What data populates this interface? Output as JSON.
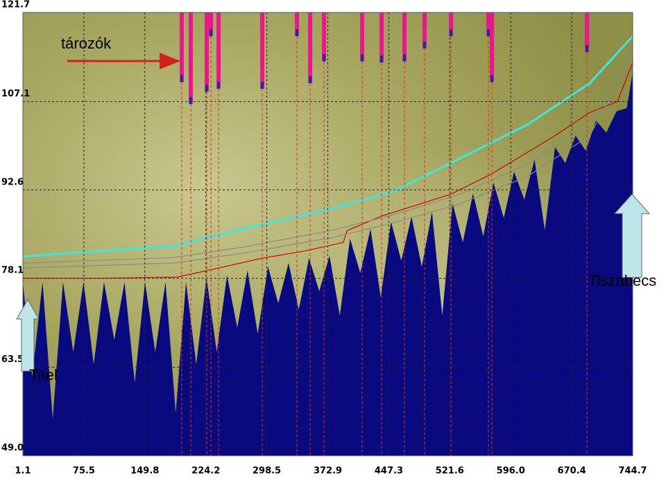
{
  "chart_data": {
    "type": "line",
    "xlim": [
      1.1,
      744.7
    ],
    "xticks": [
      1.1,
      75.5,
      149.8,
      224.2,
      298.5,
      372.9,
      447.3,
      521.6,
      {
        "value": 596,
        "label": "596.0"
      },
      670.4,
      744.7
    ],
    "ylim": [
      49,
      121.7
    ],
    "yticks": [
      {
        "value": 49,
        "label": "49.0"
      },
      63.5,
      78.1,
      92.6,
      107.1,
      121.7
    ],
    "grid": true,
    "series": [
      {
        "type": "area",
        "color": "#0a0a80",
        "x": [
          1.1,
          12.5,
          25,
          37.5,
          50,
          62.5,
          75,
          87.5,
          100,
          112.5,
          125,
          137.5,
          150,
          162.5,
          175,
          187.5,
          200,
          212.5,
          225,
          237.5,
          250,
          262.5,
          275,
          287.5,
          300,
          312.5,
          325,
          337.5,
          350,
          362.5,
          375,
          387.5,
          400,
          412.5,
          425,
          437.5,
          450,
          462.5,
          475,
          487.5,
          500,
          512.5,
          525,
          537.5,
          550,
          562.5,
          575,
          587.5,
          600,
          612.5,
          625,
          637.5,
          650,
          662.5,
          675,
          687.5,
          700,
          712.5,
          725,
          737.5,
          744.7
        ],
        "values": [
          77.5,
          62,
          77.5,
          55,
          77.5,
          66,
          77.5,
          64,
          77.5,
          68,
          77.5,
          61,
          77.5,
          66,
          77.5,
          56,
          77.5,
          64,
          78.2,
          66,
          78.6,
          70,
          79.4,
          69,
          80.0,
          74,
          80.6,
          73,
          81.4,
          76,
          81.8,
          72,
          84.6,
          79,
          86.2,
          75,
          87.4,
          81,
          88.2,
          80,
          89.0,
          72,
          90.4,
          84,
          92.0,
          85,
          93.8,
          88,
          95.6,
          91,
          97.6,
          86,
          99.6,
          97,
          101.5,
          99,
          104.0,
          102,
          105.5,
          106,
          112
        ]
      },
      {
        "type": "line",
        "color": "#d00000",
        "x": [
          1.1,
          100.1,
          188.9,
          227.0,
          293.0,
          345.4,
          391.9,
          396.2,
          438.5,
          523.1,
          573.8,
          650.0,
          692.3,
          726.1,
          744.7
        ],
        "values": [
          78.1,
          78.1,
          78.3,
          79.4,
          81.4,
          82.6,
          84.0,
          85.9,
          88.3,
          91.9,
          95.3,
          101.5,
          105.3,
          107.1,
          113.5
        ]
      },
      {
        "type": "line",
        "color": "#8a8a8a",
        "x": [
          1.1,
          184.7,
          269.3,
          379.3,
          455.5,
          531.6,
          616.2,
          692.3,
          744.7
        ],
        "values": [
          79.8,
          80.6,
          82.2,
          84.8,
          87.3,
          90.2,
          94.8,
          101.5,
          114.5
        ]
      },
      {
        "type": "line",
        "color": "#8a8a8a",
        "x": [
          1.1,
          184.7,
          269.3,
          379.3,
          455.5,
          531.6,
          616.2,
          692.3,
          744.7
        ],
        "values": [
          80.6,
          81.5,
          83.2,
          86.0,
          88.6,
          91.8,
          96.8,
          103.5,
          116.5
        ]
      },
      {
        "type": "line",
        "color": "#3fe6e0",
        "x": [
          1.1,
          184.7,
          269.3,
          379.3,
          455.5,
          531.6,
          616.2,
          692.3,
          744.7
        ],
        "values": [
          81.7,
          83.4,
          86.2,
          89.6,
          92.5,
          97.6,
          103.3,
          110.1,
          117.8
        ]
      }
    ],
    "reservoirs": {
      "color": "#e8188c",
      "x": [
        194.8,
        205.8,
        225.3,
        230.4,
        239.7,
        293.0,
        335.3,
        351.4,
        368.3,
        414.8,
        438.5,
        466.4,
        490.9,
        523.1,
        568.8,
        573.0,
        688.9
      ],
      "values": [
        110.3,
        106.7,
        108.7,
        117.8,
        109.2,
        109.2,
        117.8,
        110.1,
        113.7,
        113.7,
        113.5,
        113.7,
        115.8,
        117.8,
        117.8,
        110.3,
        115.2
      ]
    },
    "annotations": [
      "tározók",
      "Tiszabecs",
      "Titel"
    ]
  }
}
